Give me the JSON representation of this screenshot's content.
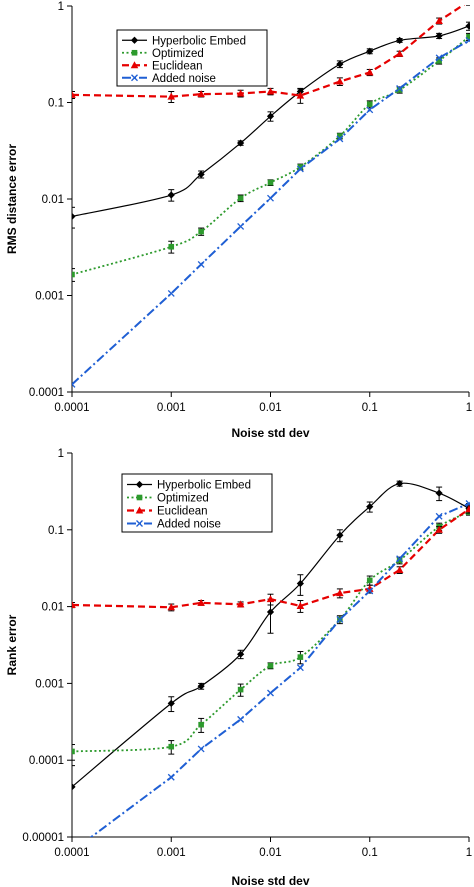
{
  "chart_data": [
    {
      "type": "line",
      "xlabel": "Noise std dev",
      "ylabel": "RMS distance error",
      "xscale": "log",
      "yscale": "log",
      "xlim": [
        0.0001,
        1
      ],
      "ylim": [
        0.0001,
        1
      ],
      "xticks": [
        {
          "value": 0.0001,
          "label": "0.0001"
        },
        {
          "value": 0.001,
          "label": "0.001"
        },
        {
          "value": 0.01,
          "label": "0.01"
        },
        {
          "value": 0.1,
          "label": "0.1"
        },
        {
          "value": 1,
          "label": "1"
        }
      ],
      "yticks": [
        {
          "value": 0.0001,
          "label": "0.0001"
        },
        {
          "value": 0.001,
          "label": "0.001"
        },
        {
          "value": 0.01,
          "label": "0.01"
        },
        {
          "value": 0.1,
          "label": "0.1"
        },
        {
          "value": 1,
          "label": "1"
        }
      ],
      "grid": false,
      "legend": "top-left, inside",
      "series": [
        {
          "name": "Hyperbolic Embed",
          "color": "#000000",
          "marker": "diamond",
          "dash": "solid",
          "smooth": true,
          "x": [
            0.0001,
            0.001,
            0.002,
            0.005,
            0.01,
            0.02,
            0.05,
            0.1,
            0.2,
            0.5,
            1
          ],
          "y": [
            0.0066,
            0.011,
            0.018,
            0.038,
            0.072,
            0.13,
            0.25,
            0.34,
            0.44,
            0.49,
            0.62
          ],
          "err": [
            0.0016,
            0.0015,
            0.0015,
            0.002,
            0.008,
            0.01,
            0.02,
            0.02,
            0.02,
            0.03,
            0.06
          ]
        },
        {
          "name": "Optimized",
          "color": "#2d9a2d",
          "marker": "square",
          "dash": "dot",
          "smooth": true,
          "x": [
            0.0001,
            0.001,
            0.002,
            0.005,
            0.01,
            0.02,
            0.05,
            0.1,
            0.2,
            0.5,
            1
          ],
          "y": [
            0.00165,
            0.0032,
            0.0046,
            0.0102,
            0.0148,
            0.0215,
            0.045,
            0.096,
            0.135,
            0.27,
            0.48
          ],
          "err": [
            0.00025,
            0.00045,
            0.0004,
            0.0008,
            0.001,
            0.0015,
            0.003,
            0.008,
            0.01,
            0.02,
            0.04
          ]
        },
        {
          "name": "Euclidean",
          "color": "#e60000",
          "marker": "triangle",
          "dash": "dash",
          "smooth": false,
          "x": [
            0.0001,
            0.001,
            0.002,
            0.005,
            0.01,
            0.02,
            0.05,
            0.1,
            0.2,
            0.5,
            1
          ],
          "y": [
            0.12,
            0.115,
            0.122,
            0.124,
            0.13,
            0.118,
            0.165,
            0.205,
            0.32,
            0.7,
            1.12
          ],
          "err": [
            0.01,
            0.015,
            0.008,
            0.01,
            0.01,
            0.02,
            0.015,
            0.015,
            0.02,
            0.05,
            0.1
          ]
        },
        {
          "name": "Added noise",
          "color": "#1f5fd4",
          "marker": "x",
          "dash": "dashdot",
          "smooth": false,
          "x": [
            0.0001,
            0.001,
            0.002,
            0.005,
            0.01,
            0.02,
            0.05,
            0.1,
            0.2,
            0.5,
            1
          ],
          "y": [
            0.00012,
            0.00105,
            0.0021,
            0.0052,
            0.0102,
            0.0205,
            0.042,
            0.084,
            0.14,
            0.29,
            0.44
          ],
          "err": null
        }
      ]
    },
    {
      "type": "line",
      "xlabel": "Noise std dev",
      "ylabel": "Rank error",
      "xscale": "log",
      "yscale": "log",
      "xlim": [
        0.0001,
        1
      ],
      "ylim": [
        1e-05,
        1
      ],
      "xticks": [
        {
          "value": 0.0001,
          "label": "0.0001"
        },
        {
          "value": 0.001,
          "label": "0.001"
        },
        {
          "value": 0.01,
          "label": "0.01"
        },
        {
          "value": 0.1,
          "label": "0.1"
        },
        {
          "value": 1,
          "label": "1"
        }
      ],
      "yticks": [
        {
          "value": 1e-05,
          "label": "0.00001"
        },
        {
          "value": 0.0001,
          "label": "0.0001"
        },
        {
          "value": 0.001,
          "label": "0.001"
        },
        {
          "value": 0.01,
          "label": "0.01"
        },
        {
          "value": 0.1,
          "label": "0.1"
        },
        {
          "value": 1,
          "label": "1"
        }
      ],
      "grid": false,
      "legend": "top-left, inside",
      "series": [
        {
          "name": "Hyperbolic Embed",
          "color": "#000000",
          "marker": "diamond",
          "dash": "solid",
          "smooth": true,
          "x": [
            0.0001,
            0.001,
            0.002,
            0.005,
            0.01,
            0.02,
            0.05,
            0.1,
            0.2,
            0.5,
            1
          ],
          "y": [
            4.5e-05,
            0.00055,
            0.00092,
            0.0024,
            0.0085,
            0.02,
            0.085,
            0.2,
            0.4,
            0.3,
            0.19
          ],
          "err": [
            4e-05,
            0.00012,
            8e-05,
            0.0003,
            0.004,
            0.006,
            0.015,
            0.03,
            0.03,
            0.06,
            0.03
          ]
        },
        {
          "name": "Optimized",
          "color": "#2d9a2d",
          "marker": "square",
          "dash": "dot",
          "smooth": true,
          "x": [
            0.0001,
            0.001,
            0.002,
            0.005,
            0.01,
            0.02,
            0.05,
            0.1,
            0.2,
            0.5,
            1
          ],
          "y": [
            0.00013,
            0.00015,
            0.00029,
            0.00083,
            0.0017,
            0.0022,
            0.0068,
            0.022,
            0.04,
            0.11,
            0.17
          ],
          "err": [
            3e-05,
            3e-05,
            6e-05,
            0.00015,
            0.00015,
            0.0004,
            0.0008,
            0.003,
            0.004,
            0.012,
            0.015
          ]
        },
        {
          "name": "Euclidean",
          "color": "#e60000",
          "marker": "triangle",
          "dash": "dash",
          "smooth": false,
          "x": [
            0.0001,
            0.001,
            0.002,
            0.005,
            0.01,
            0.02,
            0.05,
            0.1,
            0.2,
            0.5,
            1
          ],
          "y": [
            0.0105,
            0.0098,
            0.0112,
            0.0107,
            0.0125,
            0.0102,
            0.015,
            0.017,
            0.03,
            0.1,
            0.185
          ],
          "err": [
            0.0008,
            0.001,
            0.0008,
            0.0008,
            0.002,
            0.0018,
            0.002,
            0.002,
            0.003,
            0.01,
            0.02
          ]
        },
        {
          "name": "Added noise",
          "color": "#1f5fd4",
          "marker": "x",
          "dash": "dashdot",
          "smooth": false,
          "x": [
            0.0001,
            0.001,
            0.002,
            0.005,
            0.01,
            0.02,
            0.05,
            0.1,
            0.2,
            0.5,
            1
          ],
          "y": [
            6.5e-06,
            6e-05,
            0.00014,
            0.00034,
            0.00075,
            0.0016,
            0.0068,
            0.016,
            0.042,
            0.15,
            0.22
          ],
          "err": null
        }
      ]
    }
  ]
}
